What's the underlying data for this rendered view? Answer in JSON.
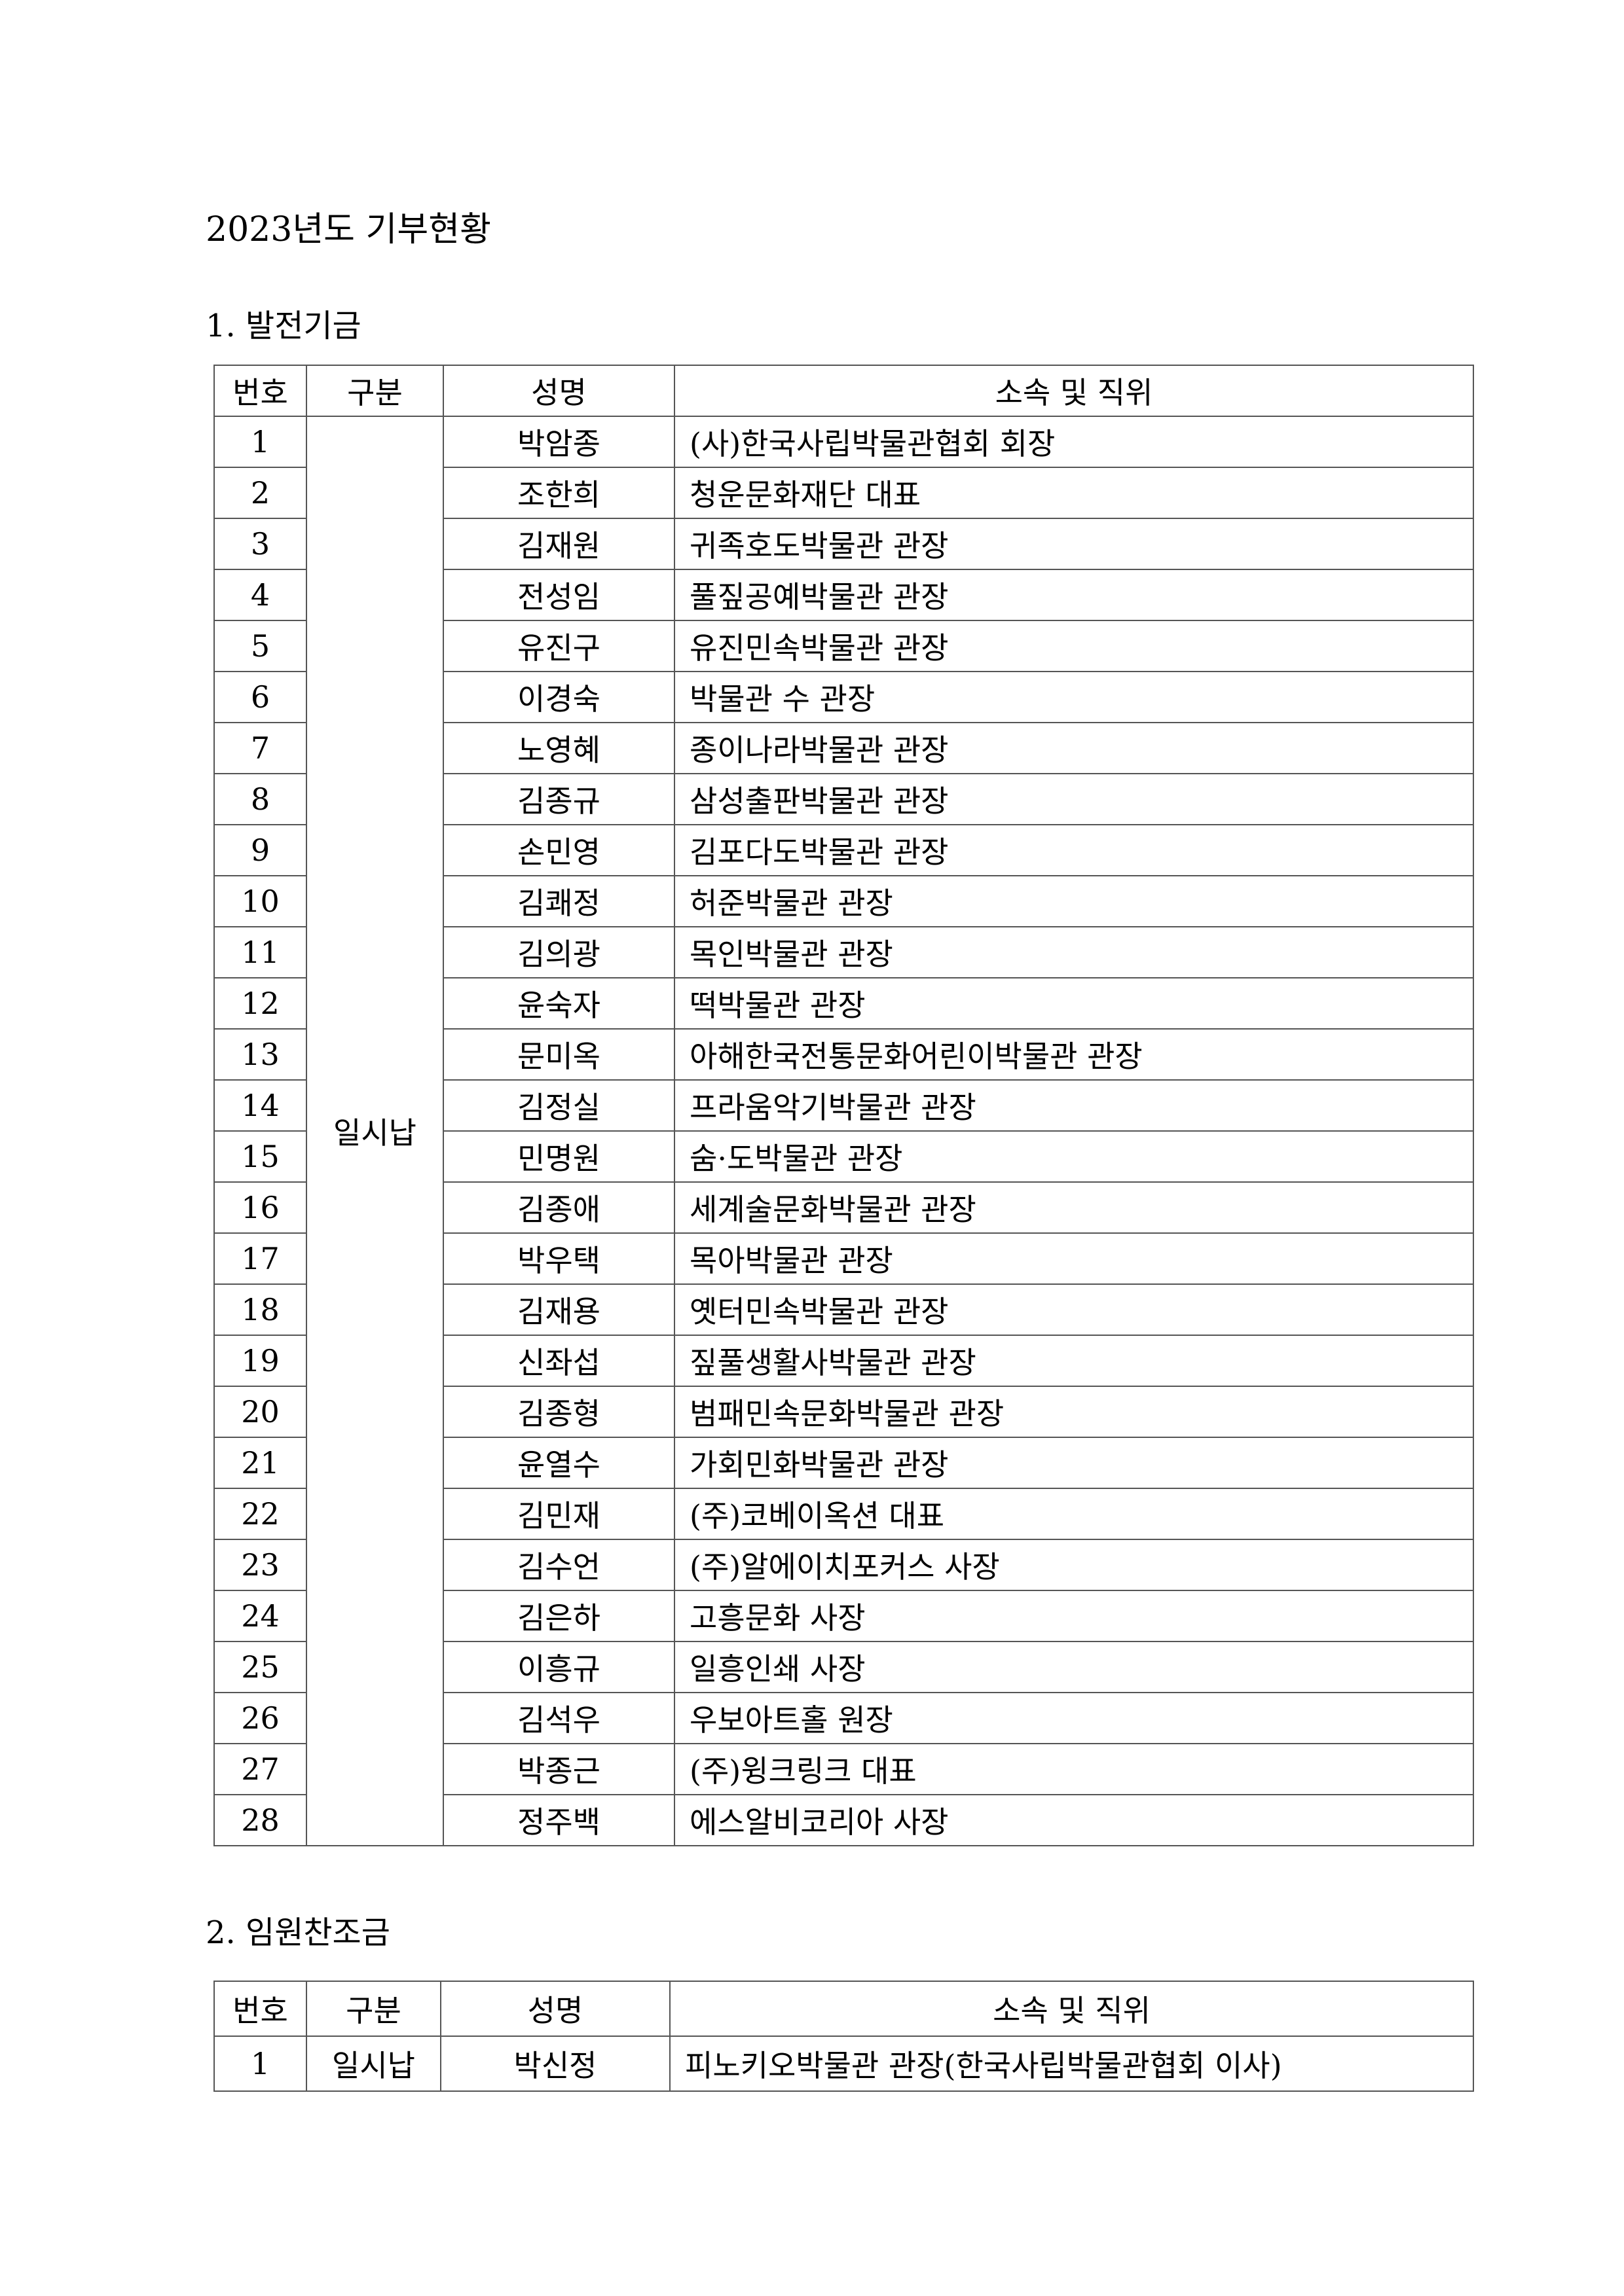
{
  "title": "2023년도 기부현황",
  "sections": [
    {
      "heading": "1. 발전기금",
      "headers": [
        "번호",
        "구분",
        "성명",
        "소속 및 직위"
      ],
      "category": "일시납",
      "rows": [
        [
          "1",
          "박암종",
          "(사)한국사립박물관협회 회장"
        ],
        [
          "2",
          "조한희",
          "청운문화재단 대표"
        ],
        [
          "3",
          "김재원",
          "귀족호도박물관 관장"
        ],
        [
          "4",
          "전성임",
          "풀짚공예박물관 관장"
        ],
        [
          "5",
          "유진구",
          "유진민속박물관 관장"
        ],
        [
          "6",
          "이경숙",
          "박물관 수 관장"
        ],
        [
          "7",
          "노영혜",
          "종이나라박물관 관장"
        ],
        [
          "8",
          "김종규",
          "삼성출판박물관 관장"
        ],
        [
          "9",
          "손민영",
          "김포다도박물관 관장"
        ],
        [
          "10",
          "김쾌정",
          "허준박물관 관장"
        ],
        [
          "11",
          "김의광",
          "목인박물관 관장"
        ],
        [
          "12",
          "윤숙자",
          "떡박물관 관장"
        ],
        [
          "13",
          "문미옥",
          "아해한국전통문화어린이박물관 관장"
        ],
        [
          "14",
          "김정실",
          "프라움악기박물관 관장"
        ],
        [
          "15",
          "민명원",
          "숨·도박물관 관장"
        ],
        [
          "16",
          "김종애",
          "세계술문화박물관 관장"
        ],
        [
          "17",
          "박우택",
          "목아박물관 관장"
        ],
        [
          "18",
          "김재용",
          "옛터민속박물관 관장"
        ],
        [
          "19",
          "신좌섭",
          "짚풀생활사박물관 관장"
        ],
        [
          "20",
          "김종형",
          "범패민속문화박물관 관장"
        ],
        [
          "21",
          "윤열수",
          "가회민화박물관 관장"
        ],
        [
          "22",
          "김민재",
          "(주)코베이옥션 대표"
        ],
        [
          "23",
          "김수언",
          "(주)알에이치포커스 사장"
        ],
        [
          "24",
          "김은하",
          "고흥문화 사장"
        ],
        [
          "25",
          "이흥규",
          "일흥인쇄 사장"
        ],
        [
          "26",
          "김석우",
          "우보아트홀 원장"
        ],
        [
          "27",
          "박종근",
          "(주)윙크링크 대표"
        ],
        [
          "28",
          "정주백",
          "에스알비코리아 사장"
        ]
      ]
    },
    {
      "heading": "2. 임원찬조금",
      "headers": [
        "번호",
        "구분",
        "성명",
        "소속 및 직위"
      ],
      "rows": [
        [
          "1",
          "일시납",
          "박신정",
          "피노키오박물관 관장(한국사립박물관협회 이사)"
        ]
      ]
    }
  ]
}
